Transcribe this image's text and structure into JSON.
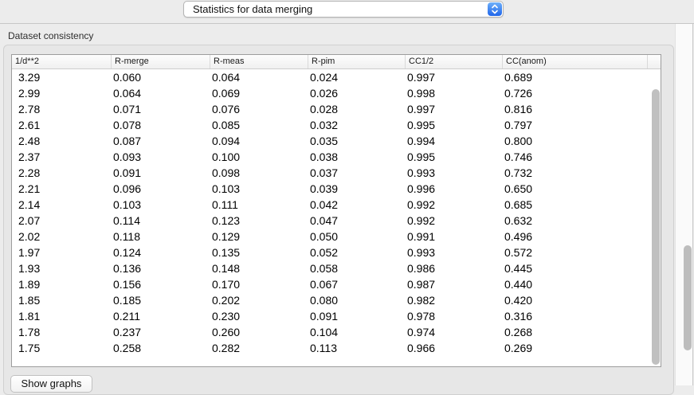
{
  "toolbar": {
    "dropdown_value": "Statistics for data merging"
  },
  "panel": {
    "group_label": "Dataset consistency",
    "show_graphs_label": "Show graphs"
  },
  "table": {
    "columns": [
      "1/d**2",
      "R-merge",
      "R-meas",
      "R-pim",
      "CC1/2",
      "CC(anom)"
    ],
    "rows": [
      [
        "3.29",
        "0.060",
        "0.064",
        "0.024",
        "0.997",
        "0.689"
      ],
      [
        "2.99",
        "0.064",
        "0.069",
        "0.026",
        "0.998",
        "0.726"
      ],
      [
        "2.78",
        "0.071",
        "0.076",
        "0.028",
        "0.997",
        "0.816"
      ],
      [
        "2.61",
        "0.078",
        "0.085",
        "0.032",
        "0.995",
        "0.797"
      ],
      [
        "2.48",
        "0.087",
        "0.094",
        "0.035",
        "0.994",
        "0.800"
      ],
      [
        "2.37",
        "0.093",
        "0.100",
        "0.038",
        "0.995",
        "0.746"
      ],
      [
        "2.28",
        "0.091",
        "0.098",
        "0.037",
        "0.993",
        "0.732"
      ],
      [
        "2.21",
        "0.096",
        "0.103",
        "0.039",
        "0.996",
        "0.650"
      ],
      [
        "2.14",
        "0.103",
        "0.111",
        "0.042",
        "0.992",
        "0.685"
      ],
      [
        "2.07",
        "0.114",
        "0.123",
        "0.047",
        "0.992",
        "0.632"
      ],
      [
        "2.02",
        "0.118",
        "0.129",
        "0.050",
        "0.991",
        "0.496"
      ],
      [
        "1.97",
        "0.124",
        "0.135",
        "0.052",
        "0.993",
        "0.572"
      ],
      [
        "1.93",
        "0.136",
        "0.148",
        "0.058",
        "0.986",
        "0.445"
      ],
      [
        "1.89",
        "0.156",
        "0.170",
        "0.067",
        "0.987",
        "0.440"
      ],
      [
        "1.85",
        "0.185",
        "0.202",
        "0.080",
        "0.982",
        "0.420"
      ],
      [
        "1.81",
        "0.211",
        "0.230",
        "0.091",
        "0.978",
        "0.316"
      ],
      [
        "1.78",
        "0.237",
        "0.260",
        "0.104",
        "0.974",
        "0.268"
      ],
      [
        "1.75",
        "0.258",
        "0.282",
        "0.113",
        "0.966",
        "0.269"
      ]
    ]
  },
  "colors": {
    "accent_blue": "#2f7cf6",
    "window_background": "#ececec",
    "table_background": "#ffffff",
    "scrollbar_thumb": "#c0c0c0"
  }
}
